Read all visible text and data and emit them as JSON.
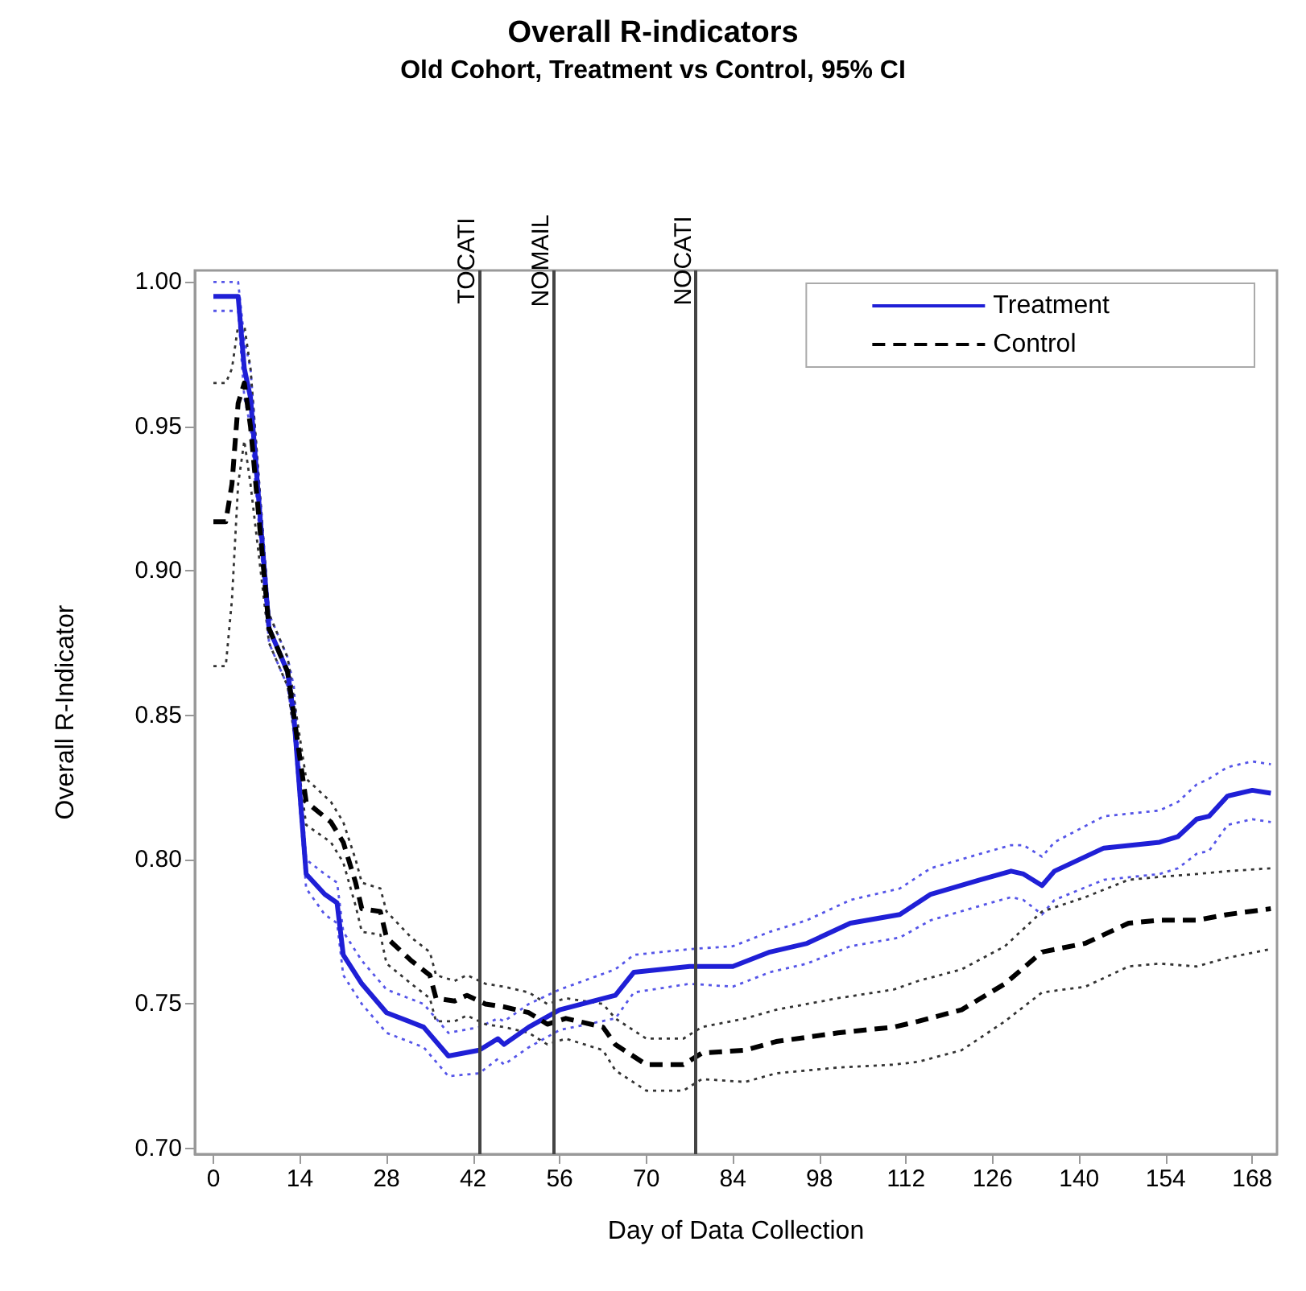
{
  "chart_data": {
    "type": "line",
    "title": "Overall R-indicators",
    "subtitle": "Old Cohort, Treatment vs Control, 95% CI",
    "xlabel": "Day of Data Collection",
    "ylabel": "Overall R-Indicator",
    "xlim": [
      -3,
      172
    ],
    "xticks": [
      0,
      14,
      28,
      42,
      56,
      70,
      84,
      98,
      112,
      126,
      140,
      154,
      168
    ],
    "ylim": [
      0.698,
      1.004
    ],
    "yticks": [
      {
        "value": 0.7,
        "label": "0.70"
      },
      {
        "value": 0.75,
        "label": "0.75"
      },
      {
        "value": 0.8,
        "label": "0.80"
      },
      {
        "value": 0.85,
        "label": "0.85"
      },
      {
        "value": 0.9,
        "label": "0.90"
      },
      {
        "value": 0.95,
        "label": "0.95"
      },
      {
        "value": 1.0,
        "label": "1.00"
      }
    ],
    "grid": false,
    "legend": "top right",
    "marker": "none",
    "ref_lines": [
      {
        "axis": "x",
        "value": 43,
        "label": "TOCATI",
        "color": "#444444"
      },
      {
        "axis": "x",
        "value": 55,
        "label": "NOMAIL",
        "color": "#444444"
      },
      {
        "axis": "x",
        "value": 78,
        "label": "NOCATI",
        "color": "#444444"
      }
    ],
    "series": [
      {
        "name": "Treatment",
        "color": "#1f1fd6",
        "line_style": "solid",
        "x": [
          0,
          4,
          5,
          6,
          9,
          12,
          13,
          15,
          18,
          20,
          21,
          24,
          28,
          34,
          38,
          43,
          46,
          47,
          51,
          56,
          65,
          68,
          77,
          84,
          90,
          96,
          103,
          111,
          116,
          124,
          129,
          131,
          134,
          136,
          144,
          153,
          156,
          159,
          161,
          164,
          168,
          171
        ],
        "values": [
          0.995,
          0.995,
          0.97,
          0.96,
          0.88,
          0.865,
          0.85,
          0.795,
          0.788,
          0.785,
          0.767,
          0.757,
          0.747,
          0.742,
          0.732,
          0.734,
          0.738,
          0.736,
          0.742,
          0.748,
          0.753,
          0.761,
          0.763,
          0.763,
          0.768,
          0.771,
          0.778,
          0.781,
          0.788,
          0.793,
          0.796,
          0.795,
          0.791,
          0.796,
          0.804,
          0.806,
          0.808,
          0.814,
          0.815,
          0.822,
          0.824,
          0.823
        ]
      },
      {
        "color": "#5555e8",
        "line_style": "dotted",
        "x": [
          0,
          4,
          5,
          6,
          9,
          12,
          13,
          15,
          18,
          20,
          21,
          24,
          28,
          34,
          38,
          43,
          46,
          47,
          51,
          56,
          65,
          68,
          77,
          84,
          90,
          96,
          103,
          111,
          116,
          124,
          129,
          131,
          134,
          136,
          144,
          153,
          156,
          159,
          161,
          164,
          168,
          171
        ],
        "values": [
          1.0,
          1.0,
          0.98,
          0.97,
          0.885,
          0.87,
          0.86,
          0.8,
          0.795,
          0.792,
          0.775,
          0.765,
          0.755,
          0.75,
          0.74,
          0.742,
          0.745,
          0.744,
          0.75,
          0.755,
          0.762,
          0.767,
          0.769,
          0.77,
          0.775,
          0.779,
          0.786,
          0.79,
          0.797,
          0.802,
          0.805,
          0.805,
          0.801,
          0.806,
          0.815,
          0.817,
          0.82,
          0.826,
          0.828,
          0.832,
          0.834,
          0.833
        ]
      },
      {
        "color": "#5555e8",
        "line_style": "dotted",
        "x": [
          0,
          4,
          5,
          6,
          9,
          12,
          13,
          15,
          18,
          20,
          21,
          24,
          28,
          34,
          38,
          43,
          46,
          47,
          51,
          56,
          65,
          68,
          77,
          84,
          90,
          96,
          103,
          111,
          116,
          124,
          129,
          131,
          134,
          136,
          144,
          153,
          156,
          159,
          161,
          164,
          168,
          171
        ],
        "values": [
          0.99,
          0.99,
          0.96,
          0.95,
          0.875,
          0.86,
          0.845,
          0.79,
          0.781,
          0.778,
          0.76,
          0.75,
          0.74,
          0.735,
          0.725,
          0.726,
          0.731,
          0.729,
          0.735,
          0.741,
          0.745,
          0.754,
          0.757,
          0.756,
          0.761,
          0.764,
          0.77,
          0.773,
          0.779,
          0.784,
          0.787,
          0.786,
          0.781,
          0.786,
          0.793,
          0.795,
          0.797,
          0.802,
          0.803,
          0.812,
          0.814,
          0.813
        ]
      },
      {
        "name": "Control",
        "color": "#000000",
        "line_style": "dashed",
        "x": [
          0,
          2,
          3,
          4,
          5,
          6,
          9,
          12,
          15,
          19,
          21,
          23,
          24,
          27,
          28,
          32,
          35,
          36,
          39,
          41,
          44,
          47,
          51,
          54,
          57,
          63,
          65,
          70,
          76,
          79,
          86,
          91,
          101,
          110,
          114,
          121,
          128,
          134,
          141,
          148,
          153,
          159,
          164,
          171
        ],
        "values": [
          0.917,
          0.917,
          0.93,
          0.958,
          0.965,
          0.95,
          0.88,
          0.865,
          0.82,
          0.813,
          0.806,
          0.792,
          0.783,
          0.782,
          0.773,
          0.765,
          0.76,
          0.752,
          0.751,
          0.753,
          0.75,
          0.749,
          0.747,
          0.743,
          0.745,
          0.742,
          0.736,
          0.729,
          0.729,
          0.733,
          0.734,
          0.737,
          0.74,
          0.742,
          0.744,
          0.748,
          0.757,
          0.768,
          0.771,
          0.778,
          0.779,
          0.779,
          0.781,
          0.783
        ]
      },
      {
        "color": "#333333",
        "line_style": "dotted",
        "x": [
          0,
          2,
          3,
          4,
          5,
          6,
          9,
          12,
          15,
          19,
          21,
          23,
          24,
          27,
          28,
          32,
          35,
          36,
          39,
          41,
          44,
          47,
          51,
          54,
          57,
          63,
          65,
          70,
          76,
          79,
          86,
          91,
          101,
          110,
          114,
          121,
          128,
          134,
          141,
          148,
          153,
          159,
          164,
          171
        ],
        "values": [
          0.965,
          0.965,
          0.97,
          0.985,
          0.985,
          0.97,
          0.885,
          0.87,
          0.828,
          0.82,
          0.813,
          0.8,
          0.792,
          0.79,
          0.782,
          0.773,
          0.768,
          0.76,
          0.758,
          0.76,
          0.757,
          0.756,
          0.754,
          0.75,
          0.752,
          0.75,
          0.745,
          0.738,
          0.738,
          0.742,
          0.745,
          0.748,
          0.752,
          0.755,
          0.758,
          0.762,
          0.77,
          0.782,
          0.787,
          0.793,
          0.794,
          0.795,
          0.796,
          0.797
        ]
      },
      {
        "color": "#333333",
        "line_style": "dotted",
        "x": [
          0,
          2,
          3,
          4,
          5,
          6,
          9,
          12,
          15,
          19,
          21,
          23,
          24,
          27,
          28,
          32,
          35,
          36,
          39,
          41,
          44,
          47,
          51,
          54,
          57,
          63,
          65,
          70,
          76,
          79,
          86,
          91,
          101,
          110,
          114,
          121,
          128,
          134,
          141,
          148,
          153,
          159,
          164,
          171
        ],
        "values": [
          0.867,
          0.867,
          0.89,
          0.93,
          0.945,
          0.93,
          0.875,
          0.86,
          0.812,
          0.806,
          0.799,
          0.784,
          0.775,
          0.774,
          0.764,
          0.757,
          0.752,
          0.744,
          0.744,
          0.746,
          0.743,
          0.742,
          0.74,
          0.736,
          0.738,
          0.734,
          0.727,
          0.72,
          0.72,
          0.724,
          0.723,
          0.726,
          0.728,
          0.729,
          0.73,
          0.734,
          0.744,
          0.754,
          0.756,
          0.763,
          0.764,
          0.763,
          0.766,
          0.769
        ]
      }
    ]
  }
}
